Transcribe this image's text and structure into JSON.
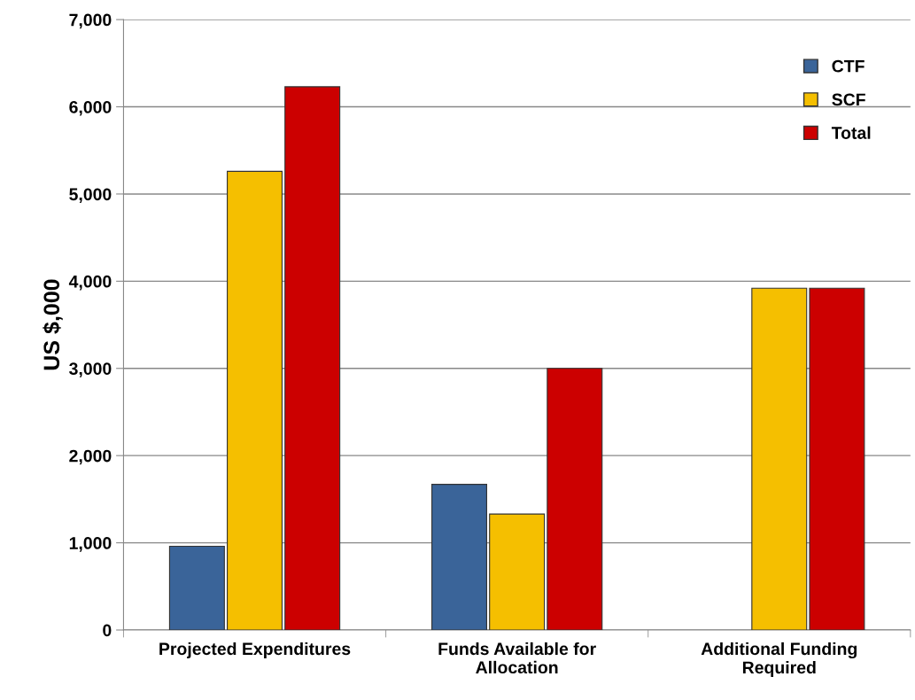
{
  "chart_data": {
    "type": "bar",
    "ylabel": "US $,000",
    "categories": [
      "Projected Expenditures",
      "Funds Available for\nAllocation",
      "Additional Funding\nRequired"
    ],
    "series": [
      {
        "name": "CTF",
        "color": "#3a6499",
        "values": [
          960,
          1670,
          null
        ]
      },
      {
        "name": "SCF",
        "color": "#f5bf00",
        "values": [
          5260,
          1330,
          3920
        ]
      },
      {
        "name": "Total",
        "color": "#cc0000",
        "values": [
          6230,
          3000,
          3920
        ]
      }
    ],
    "ylim": [
      0,
      7000
    ],
    "yticks": [
      {
        "value": 0,
        "label": "0"
      },
      {
        "value": 1000,
        "label": "1,000"
      },
      {
        "value": 2000,
        "label": "2,000"
      },
      {
        "value": 3000,
        "label": "3,000"
      },
      {
        "value": 4000,
        "label": "4,000"
      },
      {
        "value": 5000,
        "label": "5,000"
      },
      {
        "value": 6000,
        "label": "6,000"
      },
      {
        "value": 7000,
        "label": "7,000"
      }
    ],
    "grid": "y",
    "legend": "top right"
  }
}
